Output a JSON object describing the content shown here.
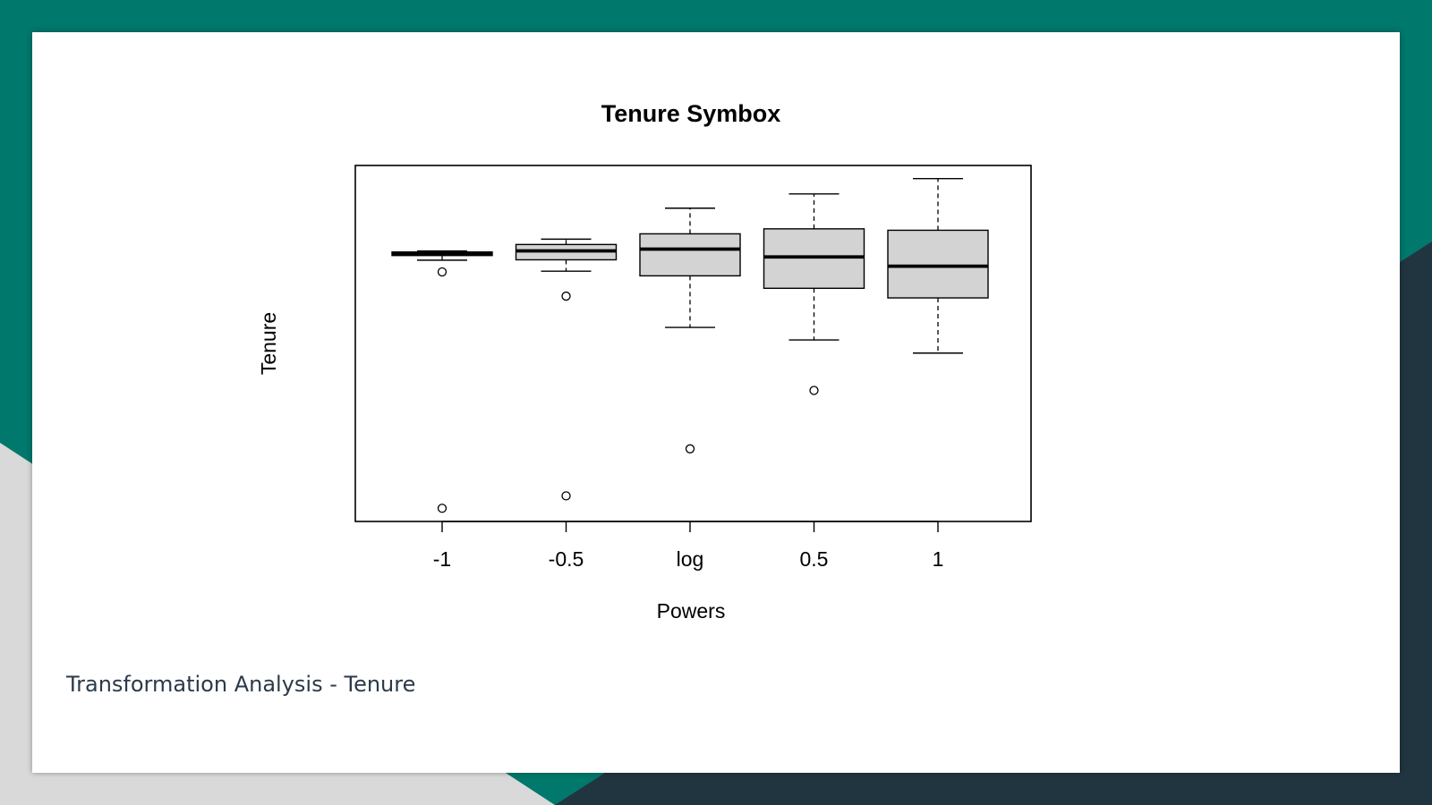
{
  "slide": {
    "caption": "Transformation Analysis - Tenure",
    "colors": {
      "teal": "#00786c",
      "dark_navy": "#213540",
      "light_gray": "#d9d9d9",
      "box_fill": "#d3d3d3"
    }
  },
  "chart_data": {
    "type": "boxplot",
    "title": "Tenure Symbox",
    "xlabel": "Powers",
    "ylabel": "Tenure",
    "categories": [
      "-1",
      "-0.5",
      "log",
      "0.5",
      "1"
    ],
    "ylim": [
      0,
      1
    ],
    "y_ticks_shown": false,
    "grid": false,
    "legend": "none",
    "boxes": [
      {
        "label": "-1",
        "whisker_low": 0.734,
        "q1": 0.747,
        "median": 0.752,
        "q3": 0.757,
        "whisker_high": 0.76,
        "outliers": [
          0.701,
          0.037
        ]
      },
      {
        "label": "-0.5",
        "whisker_low": 0.703,
        "q1": 0.735,
        "median": 0.76,
        "q3": 0.778,
        "whisker_high": 0.793,
        "outliers": [
          0.633,
          0.072
        ]
      },
      {
        "label": "log",
        "whisker_low": 0.545,
        "q1": 0.69,
        "median": 0.765,
        "q3": 0.808,
        "whisker_high": 0.88,
        "outliers": [
          0.204
        ]
      },
      {
        "label": "0.5",
        "whisker_low": 0.51,
        "q1": 0.655,
        "median": 0.743,
        "q3": 0.822,
        "whisker_high": 0.92,
        "outliers": [
          0.368
        ]
      },
      {
        "label": "1",
        "whisker_low": 0.473,
        "q1": 0.628,
        "median": 0.717,
        "q3": 0.818,
        "whisker_high": 0.963,
        "outliers": []
      }
    ]
  }
}
